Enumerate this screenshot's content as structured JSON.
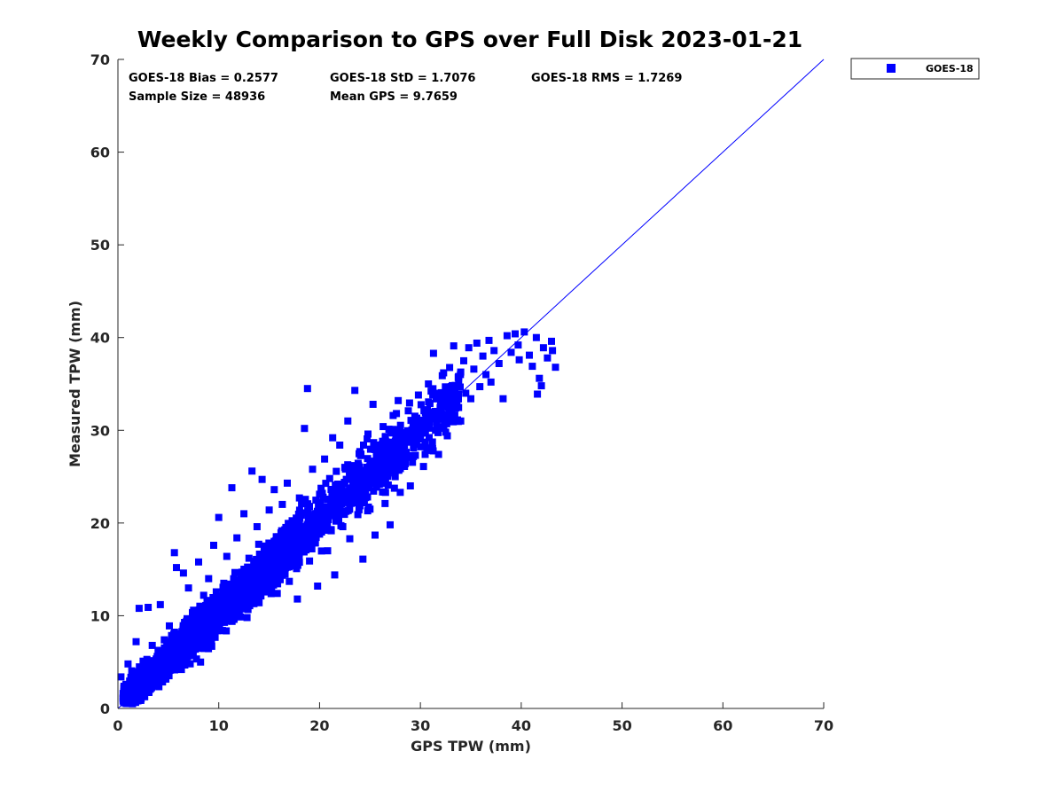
{
  "chart_data": {
    "type": "scatter",
    "title": "Weekly Comparison to GPS over Full Disk 2023-01-21",
    "xlabel": "GPS TPW (mm)",
    "ylabel": "Measured TPW (mm)",
    "xlim": [
      0,
      70
    ],
    "ylim": [
      0,
      70
    ],
    "xticks": [
      "0",
      "10",
      "20",
      "30",
      "40",
      "50",
      "60",
      "70"
    ],
    "yticks": [
      "0",
      "10",
      "20",
      "30",
      "40",
      "50",
      "60",
      "70"
    ],
    "grid": false,
    "legend_position": "top-right outside",
    "legend": [
      "GOES-18"
    ],
    "color": "#0000ff",
    "stats": {
      "bias": "GOES-18 Bias = 0.2577",
      "std": "GOES-18 StD = 1.7076",
      "rms": "GOES-18 RMS = 1.7269",
      "sample_size": "Sample Size = 48936",
      "mean_gps": "Mean GPS = 9.7659"
    },
    "reference_line": {
      "x": [
        0,
        70
      ],
      "y": [
        0,
        70
      ]
    },
    "series": [
      {
        "name": "GOES-18",
        "points": [
          [
            0.3,
            3.4
          ],
          [
            0.8,
            2.6
          ],
          [
            1.0,
            4.8
          ],
          [
            1.2,
            1.9
          ],
          [
            1.5,
            3.6
          ],
          [
            1.8,
            7.2
          ],
          [
            1.9,
            1.2
          ],
          [
            2.1,
            10.8
          ],
          [
            2.3,
            2.4
          ],
          [
            2.5,
            5.1
          ],
          [
            2.7,
            3.0
          ],
          [
            3.0,
            10.9
          ],
          [
            3.2,
            4.4
          ],
          [
            3.4,
            6.8
          ],
          [
            3.6,
            2.6
          ],
          [
            3.9,
            5.6
          ],
          [
            4.2,
            11.2
          ],
          [
            4.4,
            3.8
          ],
          [
            4.6,
            7.4
          ],
          [
            4.8,
            4.6
          ],
          [
            5.1,
            8.9
          ],
          [
            5.3,
            5.2
          ],
          [
            5.6,
            16.8
          ],
          [
            5.8,
            15.2
          ],
          [
            6.0,
            6.8
          ],
          [
            6.3,
            4.2
          ],
          [
            6.5,
            14.6
          ],
          [
            6.8,
            9.4
          ],
          [
            7.0,
            13.0
          ],
          [
            7.3,
            6.1
          ],
          [
            7.5,
            10.6
          ],
          [
            7.8,
            7.8
          ],
          [
            8.0,
            15.8
          ],
          [
            8.2,
            5.0
          ],
          [
            8.5,
            12.2
          ],
          [
            8.8,
            9.0
          ],
          [
            9.0,
            14.0
          ],
          [
            9.3,
            6.7
          ],
          [
            9.5,
            17.6
          ],
          [
            9.8,
            11.0
          ],
          [
            10.0,
            20.6
          ],
          [
            10.3,
            8.4
          ],
          [
            10.5,
            13.5
          ],
          [
            10.8,
            16.4
          ],
          [
            11.0,
            9.5
          ],
          [
            11.3,
            23.8
          ],
          [
            11.5,
            12.6
          ],
          [
            11.8,
            18.4
          ],
          [
            12.0,
            10.1
          ],
          [
            12.3,
            14.7
          ],
          [
            12.5,
            21.0
          ],
          [
            12.8,
            9.8
          ],
          [
            13.0,
            16.2
          ],
          [
            13.3,
            25.6
          ],
          [
            13.5,
            13.4
          ],
          [
            13.8,
            19.6
          ],
          [
            14.0,
            11.4
          ],
          [
            14.3,
            24.7
          ],
          [
            14.5,
            17.1
          ],
          [
            14.8,
            13.1
          ],
          [
            15.0,
            21.4
          ],
          [
            15.3,
            14.5
          ],
          [
            15.5,
            23.6
          ],
          [
            15.8,
            12.4
          ],
          [
            16.0,
            18.2
          ],
          [
            16.3,
            22.0
          ],
          [
            16.5,
            15.6
          ],
          [
            16.8,
            24.3
          ],
          [
            17.0,
            13.7
          ],
          [
            17.3,
            19.9
          ],
          [
            17.5,
            16.5
          ],
          [
            17.8,
            11.8
          ],
          [
            18.0,
            22.7
          ],
          [
            18.3,
            17.8
          ],
          [
            18.5,
            30.2
          ],
          [
            18.8,
            34.5
          ],
          [
            19.0,
            15.9
          ],
          [
            19.3,
            25.8
          ],
          [
            19.5,
            20.3
          ],
          [
            19.8,
            13.2
          ],
          [
            20.0,
            23.1
          ],
          [
            20.3,
            19.4
          ],
          [
            20.5,
            26.9
          ],
          [
            20.8,
            17.0
          ],
          [
            21.0,
            24.8
          ],
          [
            21.3,
            29.2
          ],
          [
            21.5,
            14.4
          ],
          [
            21.8,
            22.3
          ],
          [
            22.0,
            28.4
          ],
          [
            22.3,
            19.6
          ],
          [
            22.5,
            26.0
          ],
          [
            22.8,
            31.0
          ],
          [
            23.0,
            18.3
          ],
          [
            23.3,
            24.2
          ],
          [
            23.5,
            34.3
          ],
          [
            23.8,
            20.9
          ],
          [
            24.0,
            27.7
          ],
          [
            24.3,
            16.1
          ],
          [
            24.5,
            25.4
          ],
          [
            24.8,
            29.6
          ],
          [
            25.0,
            21.5
          ],
          [
            25.3,
            32.8
          ],
          [
            25.5,
            18.7
          ],
          [
            25.8,
            27.0
          ],
          [
            26.0,
            24.6
          ],
          [
            26.3,
            30.4
          ],
          [
            26.5,
            22.1
          ],
          [
            26.8,
            28.2
          ],
          [
            27.0,
            19.8
          ],
          [
            27.3,
            31.6
          ],
          [
            27.5,
            25.0
          ],
          [
            27.8,
            33.2
          ],
          [
            28.0,
            23.3
          ],
          [
            28.3,
            29.0
          ],
          [
            28.5,
            26.4
          ],
          [
            28.8,
            32.1
          ],
          [
            29.0,
            24.0
          ],
          [
            29.3,
            30.8
          ],
          [
            29.5,
            27.3
          ],
          [
            29.8,
            33.8
          ],
          [
            30.0,
            29.5
          ],
          [
            30.3,
            26.1
          ],
          [
            30.5,
            31.9
          ],
          [
            30.8,
            35.0
          ],
          [
            31.0,
            28.1
          ],
          [
            31.3,
            38.3
          ],
          [
            31.5,
            30.0
          ],
          [
            31.8,
            27.4
          ],
          [
            32.0,
            33.1
          ],
          [
            32.3,
            36.2
          ],
          [
            32.5,
            29.8
          ],
          [
            32.8,
            34.6
          ],
          [
            33.0,
            31.3
          ],
          [
            33.3,
            39.1
          ],
          [
            33.5,
            32.4
          ],
          [
            33.8,
            35.8
          ],
          [
            34.0,
            31.0
          ],
          [
            34.3,
            37.5
          ],
          [
            34.5,
            34.0
          ],
          [
            34.8,
            38.9
          ],
          [
            35.0,
            33.4
          ],
          [
            35.3,
            36.6
          ],
          [
            35.6,
            39.4
          ],
          [
            35.9,
            34.7
          ],
          [
            36.2,
            38.0
          ],
          [
            36.5,
            36.0
          ],
          [
            36.8,
            39.7
          ],
          [
            37.0,
            35.2
          ],
          [
            37.3,
            38.6
          ],
          [
            37.8,
            37.2
          ],
          [
            38.2,
            33.4
          ],
          [
            38.6,
            40.2
          ],
          [
            39.0,
            38.4
          ],
          [
            39.4,
            40.4
          ],
          [
            39.8,
            37.6
          ],
          [
            40.3,
            40.6
          ],
          [
            40.8,
            38.1
          ],
          [
            41.1,
            36.9
          ],
          [
            41.5,
            40.0
          ],
          [
            41.8,
            35.6
          ],
          [
            42.2,
            38.9
          ],
          [
            42.6,
            37.8
          ],
          [
            43.0,
            39.6
          ],
          [
            43.4,
            36.8
          ],
          [
            41.6,
            33.9
          ],
          [
            42.0,
            34.8
          ],
          [
            43.1,
            38.6
          ],
          [
            39.7,
            39.2
          ]
        ]
      }
    ]
  }
}
